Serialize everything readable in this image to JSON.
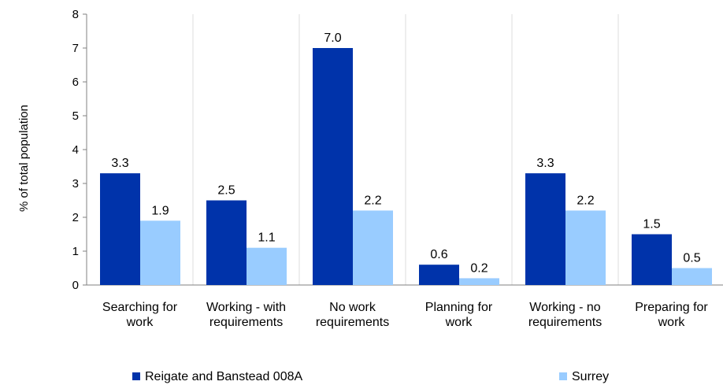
{
  "chart_data": {
    "type": "bar",
    "ylabel": "% of total population",
    "ylim": [
      0,
      8
    ],
    "yticks": [
      0,
      1,
      2,
      3,
      4,
      5,
      6,
      7,
      8
    ],
    "grid": "vertical separators between categories",
    "legend_position": "bottom",
    "categories": [
      [
        "Searching for",
        "work"
      ],
      [
        "Working - with",
        "requirements"
      ],
      [
        "No work",
        "requirements"
      ],
      [
        "Planning for",
        "work"
      ],
      [
        "Working - no",
        "requirements"
      ],
      [
        "Preparing for",
        "work"
      ]
    ],
    "series": [
      {
        "name": "Reigate and Banstead 008A",
        "color": "#0033aa",
        "values": [
          3.3,
          2.5,
          7.0,
          0.6,
          3.3,
          1.5
        ]
      },
      {
        "name": "Surrey",
        "color": "#99ccff",
        "values": [
          1.9,
          1.1,
          2.2,
          0.2,
          2.2,
          0.5
        ]
      }
    ]
  }
}
